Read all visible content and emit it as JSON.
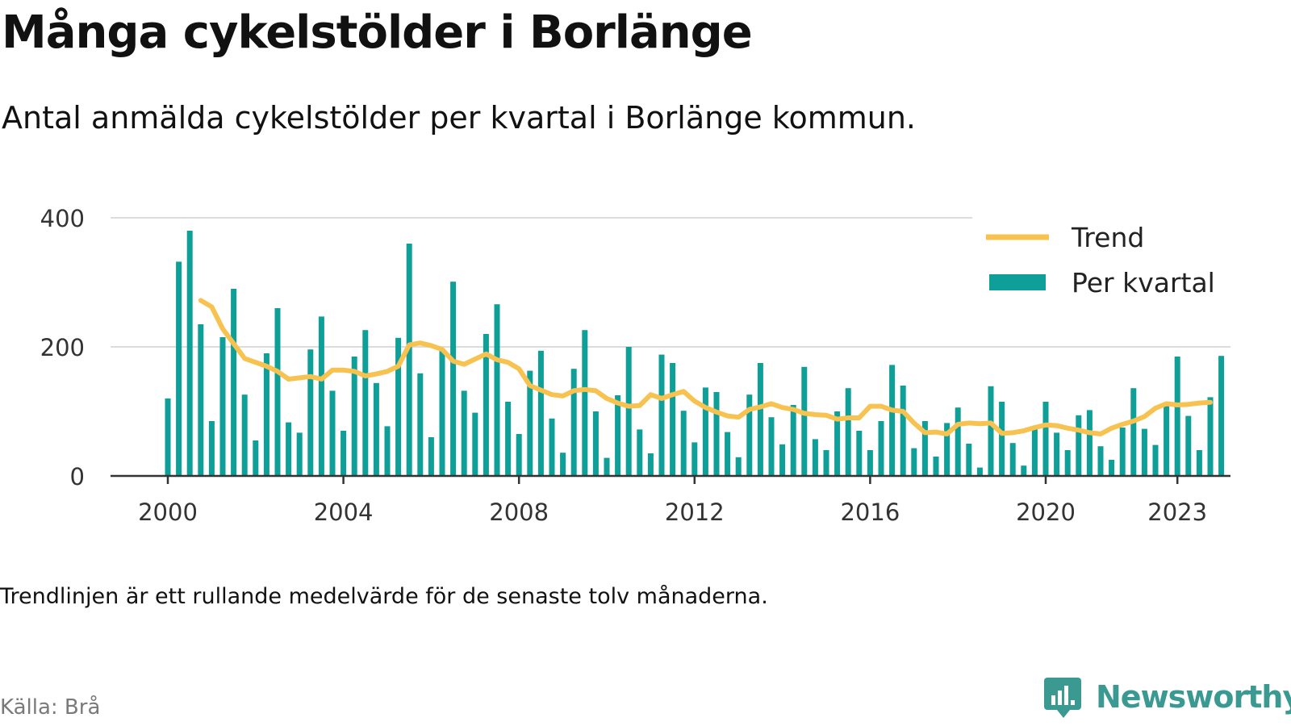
{
  "header": {
    "title": "Många cykelstölder i Borlänge",
    "subtitle": "Antal anmälda cykelstölder per kvartal i Borlänge kommun."
  },
  "footer": {
    "note": "Trendlinjen är ett rullande medelvärde för de senaste tolv månaderna.",
    "source": "Källa: Brå",
    "brand": "Newsworthy"
  },
  "colors": {
    "bar": "#0e9f98",
    "trend": "#f7c250",
    "grid": "#dcdcdc",
    "axis": "#333333",
    "brand": "#3a9a91"
  },
  "chart_data": {
    "type": "bar",
    "x_unit": "quarter",
    "start_period": "2000 Q1",
    "ylim": [
      0,
      400
    ],
    "yticks": [
      0,
      200,
      400
    ],
    "xticks": [
      "2000",
      "2004",
      "2008",
      "2012",
      "2016",
      "2020",
      "2023"
    ],
    "grid": true,
    "legend_position": "top-right",
    "series": [
      {
        "name": "Per kvartal",
        "type": "bar",
        "values": [
          120,
          332,
          380,
          235,
          85,
          215,
          290,
          126,
          55,
          190,
          260,
          83,
          67,
          196,
          247,
          132,
          70,
          185,
          226,
          144,
          77,
          214,
          360,
          159,
          60,
          195,
          301,
          132,
          98,
          220,
          266,
          115,
          65,
          163,
          194,
          89,
          36,
          166,
          226,
          100,
          28,
          125,
          200,
          72,
          35,
          188,
          175,
          101,
          52,
          137,
          130,
          68,
          29,
          126,
          175,
          91,
          49,
          110,
          169,
          57,
          40,
          100,
          136,
          70,
          40,
          85,
          172,
          140,
          43,
          85,
          30,
          82,
          106,
          50,
          13,
          139,
          115,
          51,
          16,
          77,
          115,
          67,
          40,
          94,
          102,
          46,
          25,
          75,
          136,
          73,
          48,
          108,
          185,
          93,
          40,
          122,
          186
        ]
      },
      {
        "name": "Trend",
        "type": "line",
        "values": [
          null,
          null,
          null,
          272,
          262,
          228,
          205,
          182,
          176,
          170,
          162,
          150,
          152,
          154,
          150,
          164,
          164,
          162,
          155,
          158,
          162,
          170,
          203,
          206,
          202,
          196,
          178,
          173,
          181,
          189,
          180,
          176,
          166,
          140,
          133,
          126,
          124,
          132,
          134,
          132,
          120,
          113,
          108,
          109,
          126,
          120,
          126,
          131,
          116,
          106,
          99,
          93,
          91,
          103,
          107,
          112,
          106,
          103,
          97,
          95,
          94,
          88,
          90,
          90,
          108,
          108,
          102,
          100,
          82,
          67,
          68,
          65,
          80,
          82,
          81,
          82,
          66,
          67,
          70,
          75,
          79,
          78,
          74,
          71,
          67,
          65,
          74,
          80,
          85,
          92,
          105,
          112,
          110,
          111,
          113,
          114
        ]
      }
    ]
  }
}
